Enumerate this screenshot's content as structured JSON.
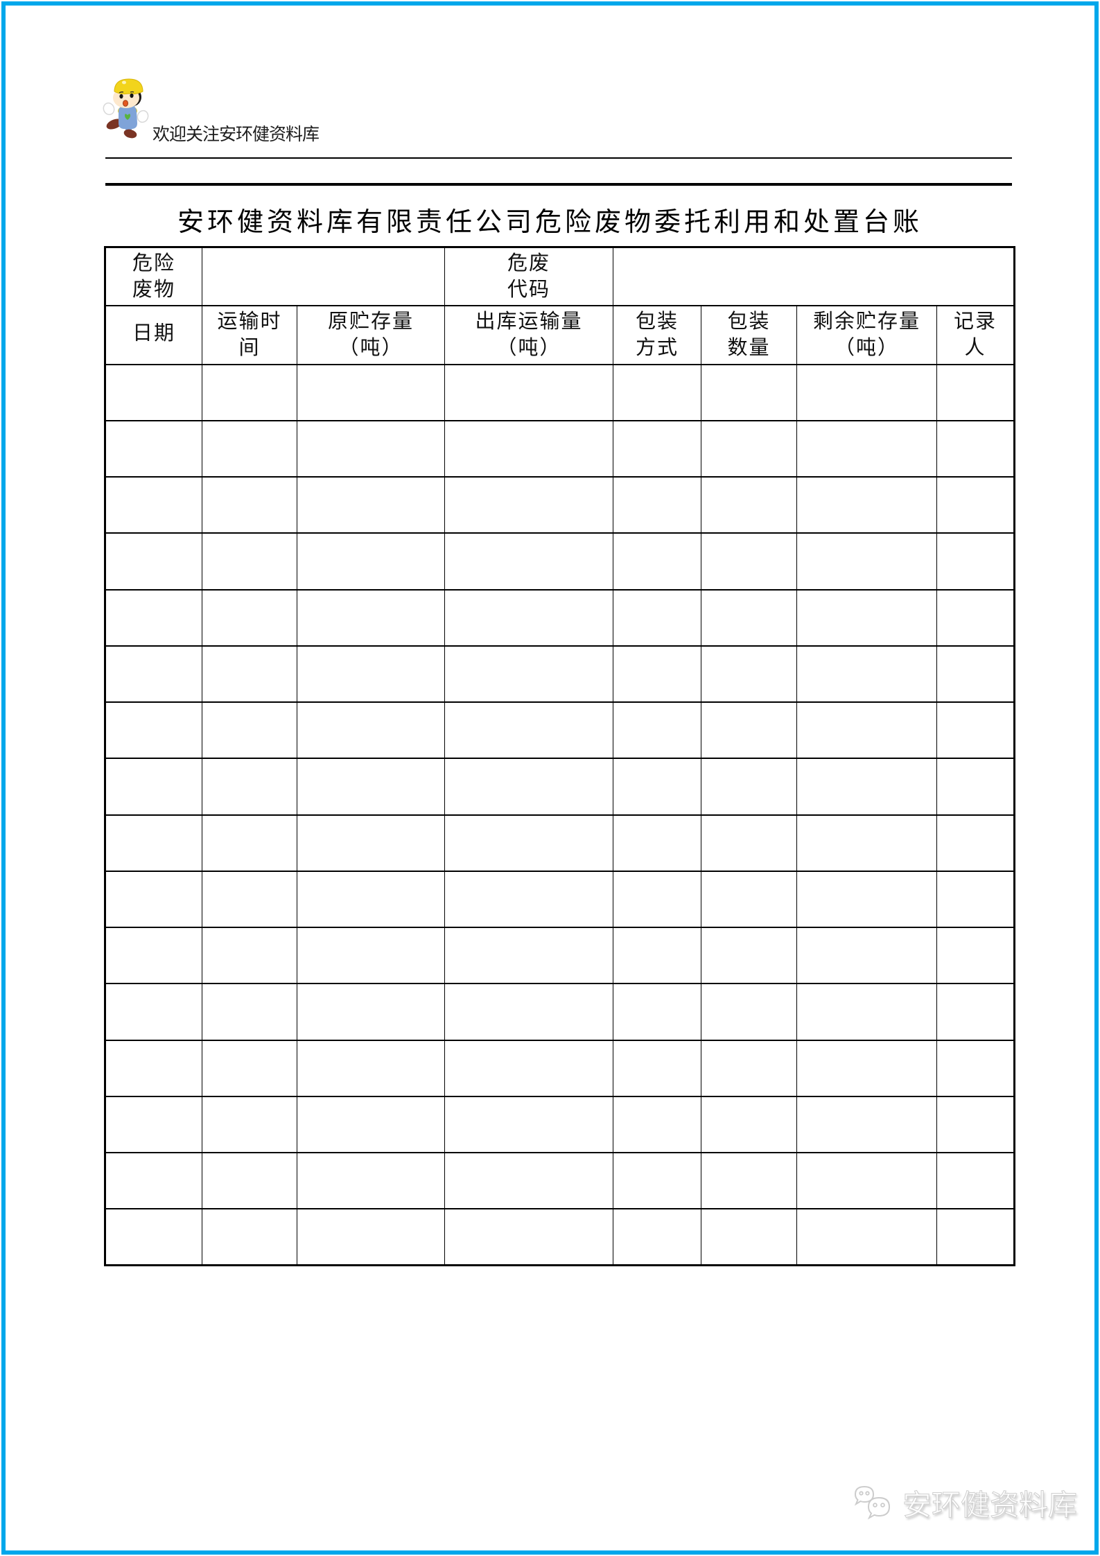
{
  "page": {
    "frame_color": "#00a7eb"
  },
  "header": {
    "tagline": "欢迎关注安环健资料库"
  },
  "title": "安环健资料库有限责任公司危险废物委托利用和处置台账",
  "table": {
    "row1_cells": [
      {
        "name": "th-hazardous-waste",
        "colspan": 1,
        "lines": [
          "危险",
          "废物"
        ]
      },
      {
        "name": "th-hazardous-waste-value",
        "colspan": 2,
        "lines": []
      },
      {
        "name": "th-waste-code",
        "colspan": 1,
        "lines": [
          "危废",
          "代码"
        ]
      },
      {
        "name": "th-waste-code-value",
        "colspan": 4,
        "lines": []
      }
    ],
    "row2_cells": [
      {
        "name": "th-date",
        "lines": [
          "日期"
        ],
        "align": "bottom"
      },
      {
        "name": "th-transport-time",
        "lines": [
          "运输时",
          "间"
        ]
      },
      {
        "name": "th-original-storage",
        "lines": [
          "原贮存量",
          "（吨）"
        ]
      },
      {
        "name": "th-outbound-quantity",
        "lines": [
          "出库运输量",
          "（吨）"
        ]
      },
      {
        "name": "th-packaging-method",
        "lines": [
          "包装",
          "方式"
        ]
      },
      {
        "name": "th-packaging-quantity",
        "lines": [
          "包装",
          "数量"
        ]
      },
      {
        "name": "th-remaining-storage",
        "lines": [
          "剩余贮存量",
          "（吨）"
        ]
      },
      {
        "name": "th-recorder",
        "lines": [
          "记录",
          "人"
        ]
      }
    ],
    "columns": 8,
    "blank_row_count": 16
  },
  "footer": {
    "watermark": "安环健资料库"
  }
}
